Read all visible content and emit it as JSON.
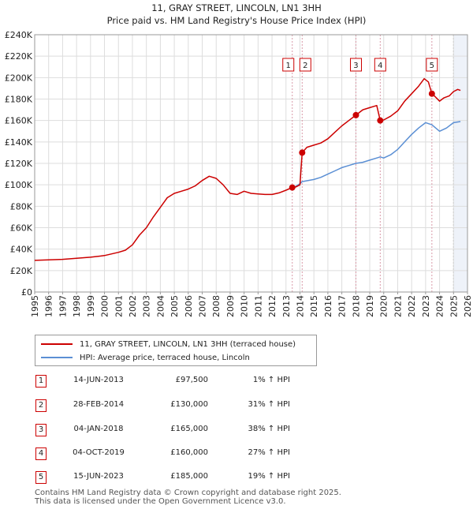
{
  "chart_data": {
    "type": "line",
    "title": "11, GRAY STREET, LINCOLN, LN1 3HH",
    "subtitle": "Price paid vs. HM Land Registry's House Price Index (HPI)",
    "x_range": [
      1995,
      2026
    ],
    "ylim": [
      0,
      240000
    ],
    "x_ticks": [
      "1995",
      "1996",
      "1997",
      "1998",
      "1999",
      "2000",
      "2001",
      "2002",
      "2003",
      "2004",
      "2005",
      "2006",
      "2007",
      "2008",
      "2009",
      "2010",
      "2011",
      "2012",
      "2013",
      "2014",
      "2015",
      "2016",
      "2017",
      "2018",
      "2019",
      "2020",
      "2021",
      "2022",
      "2023",
      "2024",
      "2025",
      "2026"
    ],
    "y_ticks": [
      {
        "value": 0,
        "label": "£0"
      },
      {
        "value": 20000,
        "label": "£20K"
      },
      {
        "value": 40000,
        "label": "£40K"
      },
      {
        "value": 60000,
        "label": "£60K"
      },
      {
        "value": 80000,
        "label": "£80K"
      },
      {
        "value": 100000,
        "label": "£100K"
      },
      {
        "value": 120000,
        "label": "£120K"
      },
      {
        "value": 140000,
        "label": "£140K"
      },
      {
        "value": 160000,
        "label": "£160K"
      },
      {
        "value": 180000,
        "label": "£180K"
      },
      {
        "value": 200000,
        "label": "£200K"
      },
      {
        "value": 220000,
        "label": "£220K"
      },
      {
        "value": 240000,
        "label": "£240K"
      }
    ],
    "series": [
      {
        "name": "11, GRAY STREET, LINCOLN, LN1 3HH (terraced house)",
        "color": "#cc0000",
        "points": [
          [
            1995.0,
            29500
          ],
          [
            1996.0,
            30000
          ],
          [
            1997.0,
            30500
          ],
          [
            1998.0,
            31500
          ],
          [
            1999.0,
            32500
          ],
          [
            2000.0,
            34000
          ],
          [
            2001.0,
            37000
          ],
          [
            2001.5,
            39000
          ],
          [
            2002.0,
            44000
          ],
          [
            2002.5,
            53000
          ],
          [
            2003.0,
            60000
          ],
          [
            2003.5,
            70000
          ],
          [
            2004.0,
            79000
          ],
          [
            2004.5,
            88000
          ],
          [
            2005.0,
            92000
          ],
          [
            2005.5,
            94000
          ],
          [
            2006.0,
            96000
          ],
          [
            2006.5,
            99000
          ],
          [
            2007.0,
            104000
          ],
          [
            2007.5,
            108000
          ],
          [
            2008.0,
            106000
          ],
          [
            2008.5,
            100000
          ],
          [
            2009.0,
            92000
          ],
          [
            2009.5,
            91000
          ],
          [
            2010.0,
            94000
          ],
          [
            2010.5,
            92000
          ],
          [
            2011.0,
            91500
          ],
          [
            2011.5,
            91000
          ],
          [
            2012.0,
            91000
          ],
          [
            2012.5,
            92500
          ],
          [
            2013.0,
            95000
          ],
          [
            2013.45,
            97500
          ],
          [
            2013.7,
            98000
          ],
          [
            2014.0,
            100000
          ],
          [
            2014.16,
            130000
          ],
          [
            2014.5,
            135000
          ],
          [
            2015.0,
            137000
          ],
          [
            2015.5,
            139000
          ],
          [
            2016.0,
            143000
          ],
          [
            2016.5,
            149000
          ],
          [
            2017.0,
            155000
          ],
          [
            2017.5,
            160000
          ],
          [
            2018.01,
            165000
          ],
          [
            2018.5,
            170000
          ],
          [
            2019.0,
            172000
          ],
          [
            2019.5,
            174000
          ],
          [
            2019.75,
            160000
          ],
          [
            2020.0,
            160500
          ],
          [
            2020.5,
            164000
          ],
          [
            2021.0,
            169000
          ],
          [
            2021.5,
            178000
          ],
          [
            2022.0,
            185000
          ],
          [
            2022.5,
            192000
          ],
          [
            2022.9,
            199000
          ],
          [
            2023.2,
            196000
          ],
          [
            2023.45,
            185000
          ],
          [
            2023.7,
            182000
          ],
          [
            2024.0,
            178000
          ],
          [
            2024.3,
            181000
          ],
          [
            2024.7,
            183000
          ],
          [
            2025.0,
            187000
          ],
          [
            2025.3,
            189000
          ],
          [
            2025.5,
            188000
          ]
        ]
      },
      {
        "name": "HPI: Average price, terraced house, Lincoln",
        "color": "#5b8fd4",
        "points": [
          [
            2013.45,
            96500
          ],
          [
            2014.0,
            101000
          ],
          [
            2014.16,
            103000
          ],
          [
            2015.0,
            105000
          ],
          [
            2015.5,
            107000
          ],
          [
            2016.0,
            110000
          ],
          [
            2016.5,
            113000
          ],
          [
            2017.0,
            116000
          ],
          [
            2017.5,
            118000
          ],
          [
            2018.0,
            120000
          ],
          [
            2018.5,
            121000
          ],
          [
            2019.0,
            123000
          ],
          [
            2019.5,
            125000
          ],
          [
            2019.75,
            126000
          ],
          [
            2020.0,
            125000
          ],
          [
            2020.5,
            128000
          ],
          [
            2021.0,
            133000
          ],
          [
            2021.5,
            140000
          ],
          [
            2022.0,
            147000
          ],
          [
            2022.5,
            153000
          ],
          [
            2023.0,
            158000
          ],
          [
            2023.45,
            156000
          ],
          [
            2024.0,
            150000
          ],
          [
            2024.5,
            153000
          ],
          [
            2025.0,
            158000
          ],
          [
            2025.5,
            159000
          ]
        ]
      }
    ],
    "shaded_region": {
      "from": 2025.0,
      "to": 2026.0
    },
    "markers": [
      {
        "num": "1",
        "x": 2013.45,
        "price": 97500
      },
      {
        "num": "2",
        "x": 2014.16,
        "price": 130000
      },
      {
        "num": "3",
        "x": 2018.01,
        "price": 165000
      },
      {
        "num": "4",
        "x": 2019.75,
        "price": 160000
      },
      {
        "num": "5",
        "x": 2023.45,
        "price": 185000
      }
    ]
  },
  "legend": {
    "property_label": "11, GRAY STREET, LINCOLN, LN1 3HH (terraced house)",
    "hpi_label": "HPI: Average price, terraced house, Lincoln"
  },
  "transactions": [
    {
      "num": "1",
      "date": "14-JUN-2013",
      "price": "£97,500",
      "hpi": "1% ↑ HPI"
    },
    {
      "num": "2",
      "date": "28-FEB-2014",
      "price": "£130,000",
      "hpi": "31% ↑ HPI"
    },
    {
      "num": "3",
      "date": "04-JAN-2018",
      "price": "£165,000",
      "hpi": "38% ↑ HPI"
    },
    {
      "num": "4",
      "date": "04-OCT-2019",
      "price": "£160,000",
      "hpi": "27% ↑ HPI"
    },
    {
      "num": "5",
      "date": "15-JUN-2023",
      "price": "£185,000",
      "hpi": "19% ↑ HPI"
    }
  ],
  "footer": {
    "line1": "Contains HM Land Registry data © Crown copyright and database right 2025.",
    "line2": "This data is licensed under the Open Government Licence v3.0."
  }
}
